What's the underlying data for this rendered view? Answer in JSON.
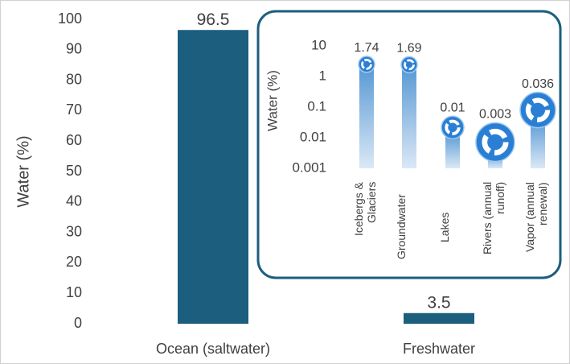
{
  "chart_data": [
    {
      "type": "bar",
      "ylabel": "Water (%)",
      "categories": [
        "Ocean (saltwater)",
        "Freshwater"
      ],
      "values": [
        96.5,
        3.5
      ],
      "color": "#1b5e7e",
      "ylim": [
        0,
        100
      ],
      "yticks": [
        0,
        10,
        20,
        30,
        40,
        50,
        60,
        70,
        80,
        90,
        100
      ],
      "grid": false,
      "value_labels_shown": true
    },
    {
      "type": "bar",
      "ylabel": "Water (%)",
      "log": true,
      "categories": [
        "Icebergs & Glaciers",
        "Groundwater",
        "Lakes",
        "Rivers (annual runoff)",
        "Vapor (annual renewal)"
      ],
      "values": [
        1.74,
        1.69,
        0.013,
        0.003,
        0.036
      ],
      "value_labels": [
        "1.74",
        "1.69",
        "0.01",
        "0.003",
        "0.036"
      ],
      "color": "#5b9bd5",
      "ylim": [
        0.001,
        10
      ],
      "yticks": [
        0.001,
        0.01,
        0.1,
        1,
        10
      ],
      "grid": false
    }
  ]
}
